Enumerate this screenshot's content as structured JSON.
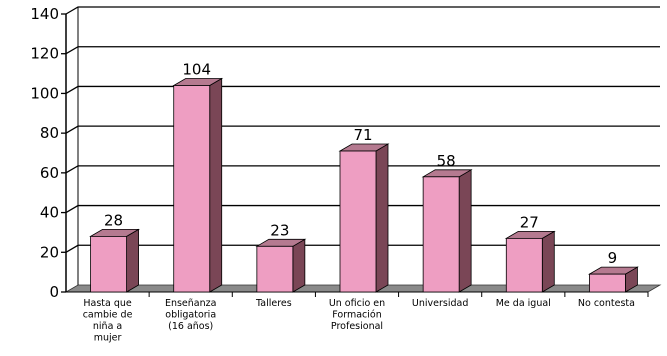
{
  "chart_data": {
    "type": "bar",
    "categories": [
      [
        "Hasta que",
        "cambie de",
        "niña a",
        "mujer"
      ],
      [
        "Enseñanza",
        "obligatoria",
        "(16 años)"
      ],
      [
        "Talleres"
      ],
      [
        "Un oficio en",
        "Formación",
        "Profesional"
      ],
      [
        "Universidad"
      ],
      [
        "Me da igual"
      ],
      [
        "No contesta"
      ]
    ],
    "values": [
      28,
      104,
      23,
      71,
      58,
      27,
      9
    ],
    "data_labels": [
      "28",
      "104",
      "23",
      "71",
      "58",
      "27",
      "9"
    ],
    "yticks": [
      "0",
      "20",
      "40",
      "60",
      "80",
      "100",
      "120",
      "140"
    ],
    "ylim": [
      0,
      140
    ],
    "grid": true,
    "style": "3d-column",
    "colors": {
      "bar_front": "#ee9ec2",
      "bar_side": "#7a4656",
      "bar_top": "#b57a90",
      "floor": "#8a8a8a",
      "gridline": "#000000"
    }
  }
}
